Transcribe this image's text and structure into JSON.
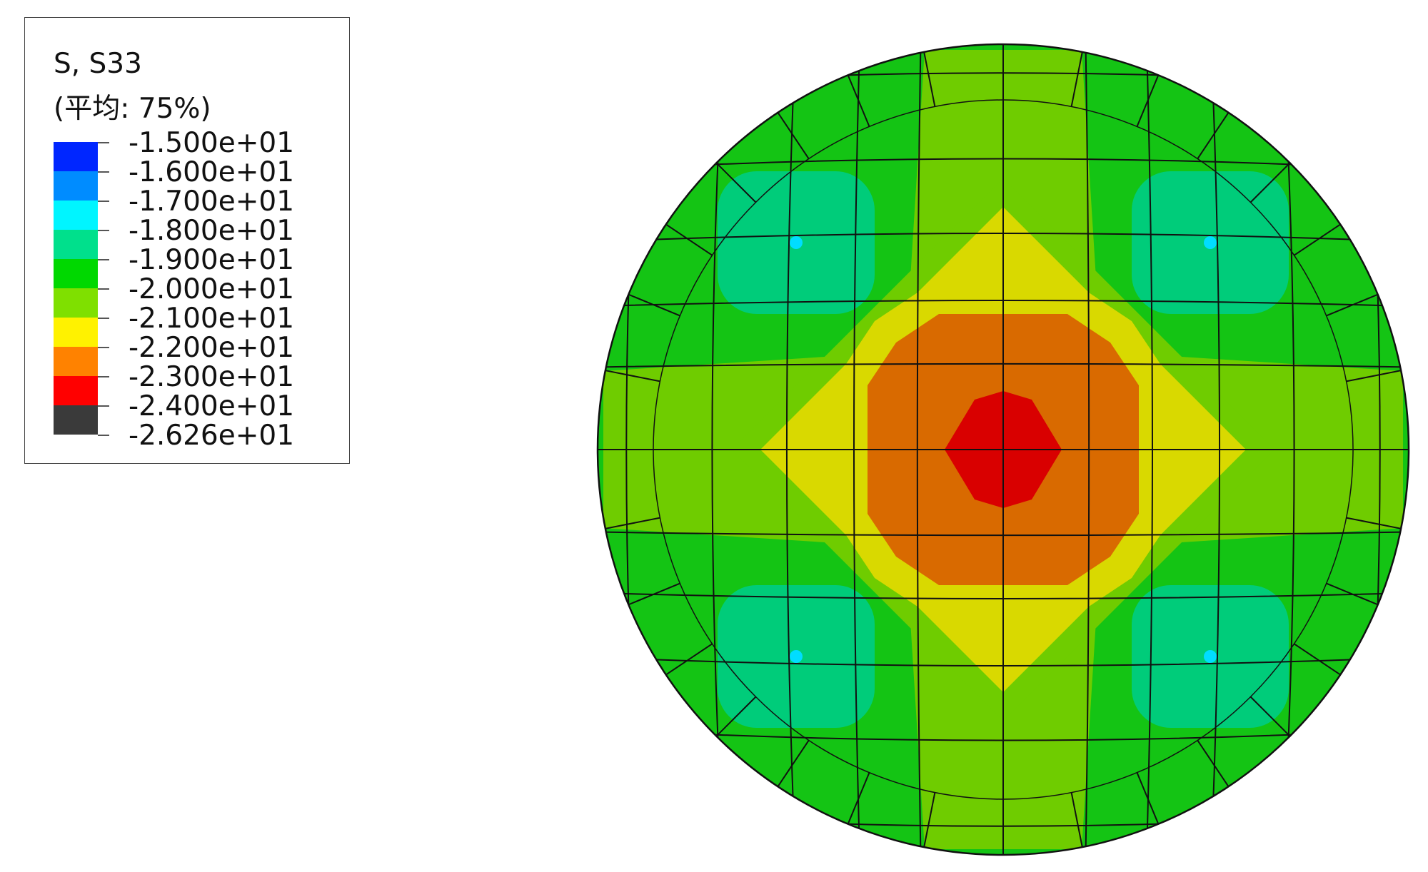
{
  "legend": {
    "title_line1": "S, S33",
    "title_line2": "(平均: 75%)",
    "levels": [
      {
        "label": "-1.500e+01",
        "color": "#0026ff"
      },
      {
        "label": "-1.600e+01",
        "color": "#008cff"
      },
      {
        "label": "-1.700e+01",
        "color": "#00f5ff"
      },
      {
        "label": "-1.800e+01",
        "color": "#00e08c"
      },
      {
        "label": "-1.900e+01",
        "color": "#00d800"
      },
      {
        "label": "-2.000e+01",
        "color": "#7fe000"
      },
      {
        "label": "-2.100e+01",
        "color": "#fff200"
      },
      {
        "label": "-2.200e+01",
        "color": "#ff8200"
      },
      {
        "label": "-2.300e+01",
        "color": "#ff0000"
      },
      {
        "label": "-2.400e+01",
        "color": "#3a3a3a"
      },
      {
        "label": "-2.626e+01",
        "color": ""
      }
    ]
  },
  "contour_colors": {
    "background_green": "#14c414",
    "light_green": "#6fcc00",
    "yellow": "#d9d900",
    "orange": "#d96a00",
    "red": "#d90000",
    "teal": "#00cc7a",
    "cyan": "#00ddff",
    "mesh_line": "#111111"
  }
}
